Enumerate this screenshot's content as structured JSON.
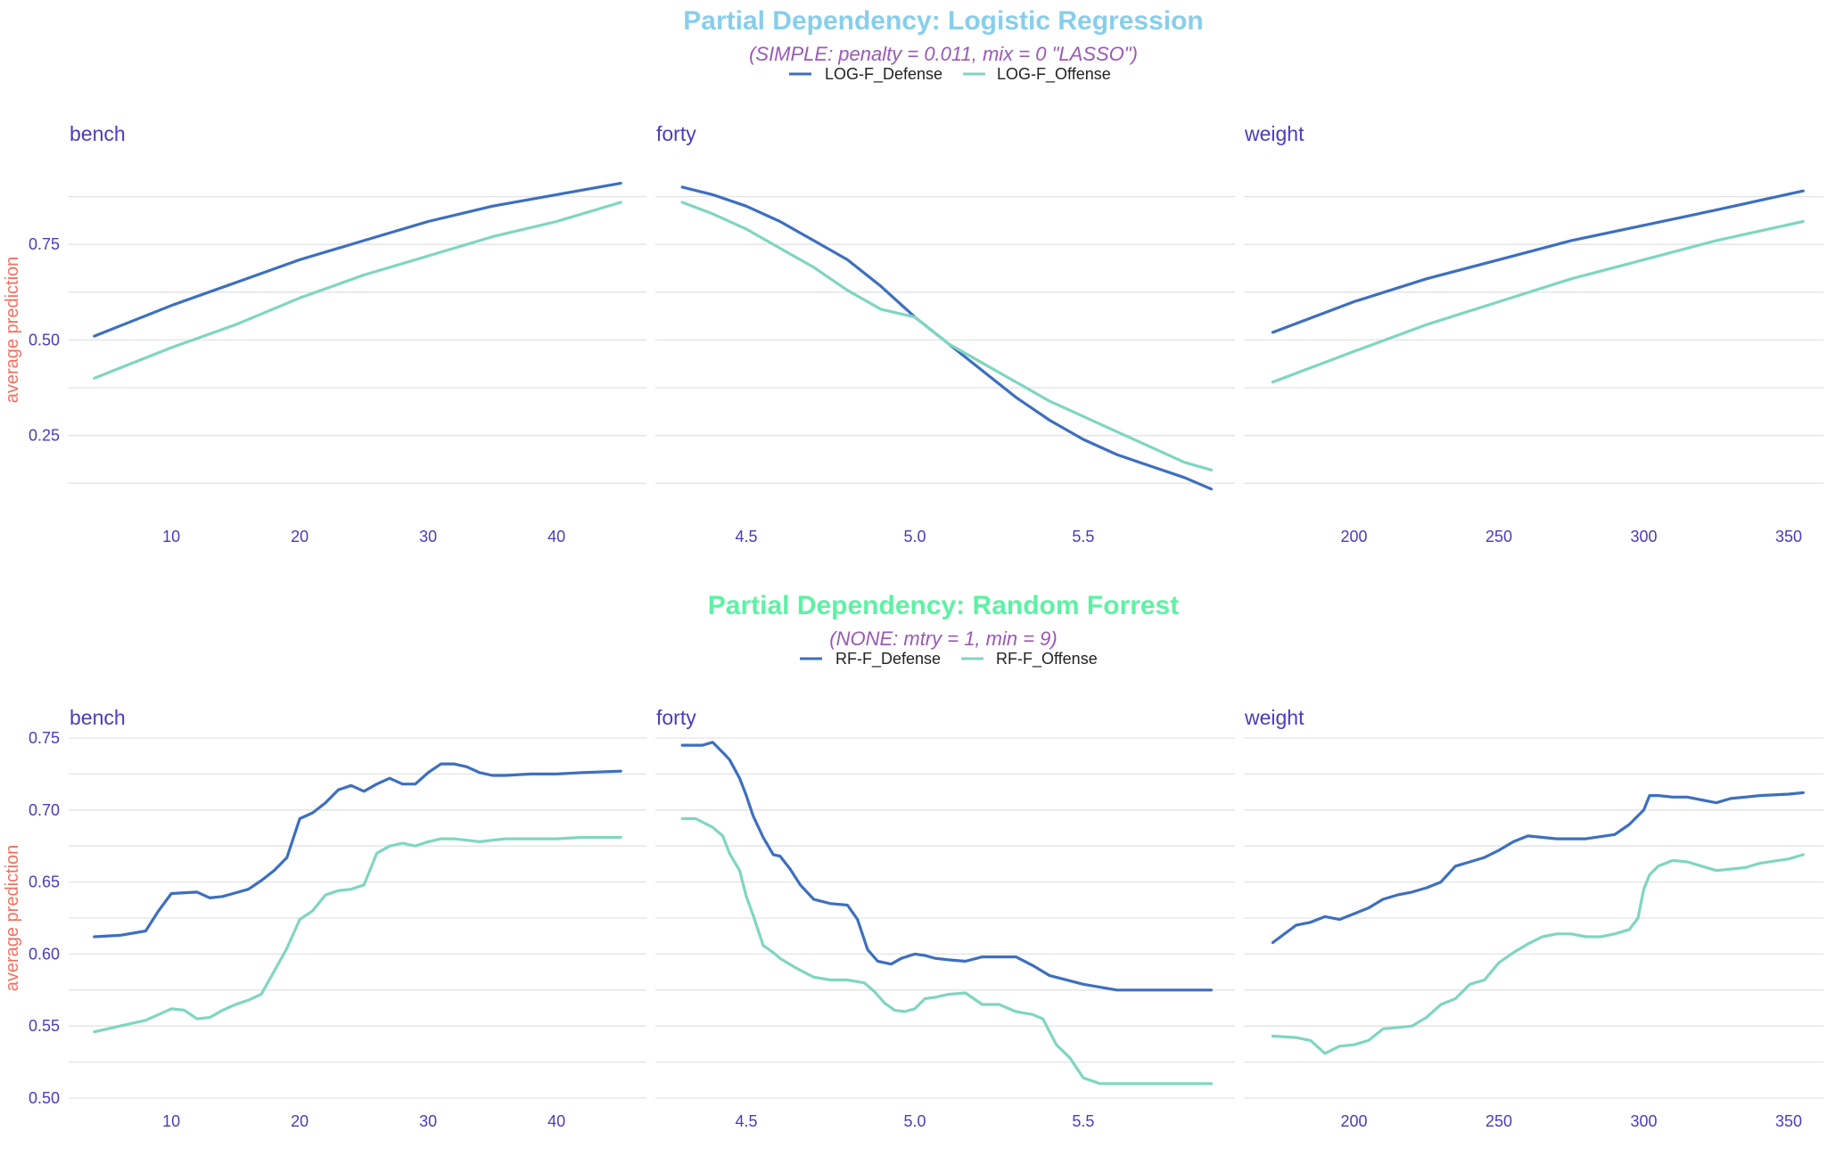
{
  "colors": {
    "defense": "#3d6fbf",
    "offense": "#7fd6bf",
    "strip_text": "#4b3bbf",
    "tick_text": "#4b3bbf",
    "ylabel": "#f07060",
    "subtitle": "#9b59b6",
    "title_top": "#87ceeb",
    "title_bottom": "#5cf2a4"
  },
  "chart_data": [
    {
      "type": "line",
      "title": "Partial Dependency: Logistic Regression",
      "subtitle": "(SIMPLE: penalty = 0.011, mix = 0 \"LASSO\")",
      "ylabel": "average prediction",
      "legend": [
        "LOG-F_Defense",
        "LOG-F_Offense"
      ],
      "legend_position": "top",
      "grid": true,
      "ylim": [
        0.1,
        0.93
      ],
      "yticks": [
        0.25,
        0.5,
        0.75
      ],
      "ytick_labels": [
        "0.25",
        "0.50",
        "0.75"
      ],
      "panels": [
        {
          "name": "bench",
          "xlim": [
            2,
            47
          ],
          "xticks": [
            10,
            20,
            30,
            40
          ],
          "xtick_labels": [
            "10",
            "20",
            "30",
            "40"
          ],
          "series": [
            {
              "name": "LOG-F_Defense",
              "x": [
                4,
                10,
                15,
                20,
                25,
                30,
                35,
                40,
                45
              ],
              "y": [
                0.51,
                0.59,
                0.65,
                0.71,
                0.76,
                0.81,
                0.85,
                0.88,
                0.91
              ]
            },
            {
              "name": "LOG-F_Offense",
              "x": [
                4,
                10,
                15,
                20,
                25,
                30,
                35,
                40,
                45
              ],
              "y": [
                0.4,
                0.48,
                0.54,
                0.61,
                0.67,
                0.72,
                0.77,
                0.81,
                0.86
              ]
            }
          ]
        },
        {
          "name": "forty",
          "xlim": [
            4.23,
            5.95
          ],
          "xticks": [
            4.5,
            5.0,
            5.5
          ],
          "xtick_labels": [
            "4.5",
            "5.0",
            "5.5"
          ],
          "series": [
            {
              "name": "LOG-F_Defense",
              "x": [
                4.31,
                4.4,
                4.5,
                4.6,
                4.7,
                4.8,
                4.9,
                5.0,
                5.1,
                5.2,
                5.3,
                5.4,
                5.5,
                5.6,
                5.7,
                5.8,
                5.88
              ],
              "y": [
                0.9,
                0.88,
                0.85,
                0.81,
                0.76,
                0.71,
                0.64,
                0.56,
                0.49,
                0.42,
                0.35,
                0.29,
                0.24,
                0.2,
                0.17,
                0.14,
                0.11
              ]
            },
            {
              "name": "LOG-F_Offense",
              "x": [
                4.31,
                4.4,
                4.5,
                4.6,
                4.7,
                4.8,
                4.9,
                5.0,
                5.1,
                5.2,
                5.3,
                5.4,
                5.5,
                5.6,
                5.7,
                5.8,
                5.88
              ],
              "y": [
                0.86,
                0.83,
                0.79,
                0.74,
                0.69,
                0.63,
                0.58,
                0.56,
                0.49,
                0.44,
                0.39,
                0.34,
                0.3,
                0.26,
                0.22,
                0.18,
                0.16
              ]
            }
          ]
        },
        {
          "name": "weight",
          "xlim": [
            162,
            362
          ],
          "xticks": [
            200,
            250,
            300,
            350
          ],
          "xtick_labels": [
            "200",
            "250",
            "300",
            "350"
          ],
          "series": [
            {
              "name": "LOG-F_Defense",
              "x": [
                172,
                200,
                225,
                250,
                275,
                300,
                325,
                355
              ],
              "y": [
                0.52,
                0.6,
                0.66,
                0.71,
                0.76,
                0.8,
                0.84,
                0.89
              ]
            },
            {
              "name": "LOG-F_Offense",
              "x": [
                172,
                200,
                225,
                250,
                275,
                300,
                325,
                355
              ],
              "y": [
                0.39,
                0.47,
                0.54,
                0.6,
                0.66,
                0.71,
                0.76,
                0.81
              ]
            }
          ]
        }
      ]
    },
    {
      "type": "line",
      "title": "Partial Dependency: Random Forrest",
      "subtitle": "(NONE: mtry = 1, min = 9)",
      "ylabel": "average prediction",
      "legend": [
        "RF-F_Defense",
        "RF-F_Offense"
      ],
      "legend_position": "top",
      "grid": true,
      "ylim": [
        0.5,
        0.75
      ],
      "yticks": [
        0.5,
        0.55,
        0.6,
        0.65,
        0.7,
        0.75
      ],
      "ytick_labels": [
        "0.50",
        "0.55",
        "0.60",
        "0.65",
        "0.70",
        "0.75"
      ],
      "panels": [
        {
          "name": "bench",
          "xlim": [
            2,
            47
          ],
          "xticks": [
            10,
            20,
            30,
            40
          ],
          "xtick_labels": [
            "10",
            "20",
            "30",
            "40"
          ],
          "series": [
            {
              "name": "RF-F_Defense",
              "x": [
                4,
                6,
                8,
                9,
                10,
                12,
                13,
                14,
                16,
                17,
                18,
                19,
                20,
                21,
                22,
                23,
                24,
                25,
                26,
                27,
                28,
                29,
                30,
                31,
                32,
                33,
                34,
                35,
                36,
                38,
                40,
                42,
                45
              ],
              "y": [
                0.612,
                0.613,
                0.616,
                0.63,
                0.642,
                0.643,
                0.639,
                0.64,
                0.645,
                0.651,
                0.658,
                0.667,
                0.694,
                0.698,
                0.705,
                0.714,
                0.717,
                0.713,
                0.718,
                0.722,
                0.718,
                0.718,
                0.726,
                0.732,
                0.732,
                0.73,
                0.726,
                0.724,
                0.724,
                0.725,
                0.725,
                0.726,
                0.727
              ]
            },
            {
              "name": "RF-F_Offense",
              "x": [
                4,
                6,
                8,
                9,
                10,
                11,
                12,
                13,
                14,
                15,
                16,
                17,
                18,
                19,
                20,
                21,
                22,
                23,
                24,
                25,
                26,
                27,
                28,
                29,
                30,
                31,
                32,
                33,
                34,
                35,
                36,
                38,
                40,
                42,
                45
              ],
              "y": [
                0.546,
                0.55,
                0.554,
                0.558,
                0.562,
                0.561,
                0.555,
                0.556,
                0.561,
                0.565,
                0.568,
                0.572,
                0.588,
                0.604,
                0.624,
                0.63,
                0.641,
                0.644,
                0.645,
                0.648,
                0.67,
                0.675,
                0.677,
                0.675,
                0.678,
                0.68,
                0.68,
                0.679,
                0.678,
                0.679,
                0.68,
                0.68,
                0.68,
                0.681,
                0.681
              ]
            }
          ]
        },
        {
          "name": "forty",
          "xlim": [
            4.23,
            5.95
          ],
          "xticks": [
            4.5,
            5.0,
            5.5
          ],
          "xtick_labels": [
            "4.5",
            "5.0",
            "5.5"
          ],
          "series": [
            {
              "name": "RF-F_Defense",
              "x": [
                4.31,
                4.37,
                4.4,
                4.43,
                4.45,
                4.48,
                4.5,
                4.52,
                4.55,
                4.58,
                4.6,
                4.63,
                4.66,
                4.7,
                4.75,
                4.8,
                4.83,
                4.86,
                4.89,
                4.93,
                4.96,
                5.0,
                5.03,
                5.06,
                5.1,
                5.15,
                5.2,
                5.3,
                5.35,
                5.4,
                5.5,
                5.6,
                5.7,
                5.8,
                5.88
              ],
              "y": [
                0.745,
                0.745,
                0.747,
                0.74,
                0.735,
                0.722,
                0.71,
                0.696,
                0.681,
                0.669,
                0.668,
                0.659,
                0.648,
                0.638,
                0.635,
                0.634,
                0.624,
                0.603,
                0.595,
                0.593,
                0.597,
                0.6,
                0.599,
                0.597,
                0.596,
                0.595,
                0.598,
                0.598,
                0.592,
                0.585,
                0.579,
                0.575,
                0.575,
                0.575,
                0.575
              ]
            },
            {
              "name": "RF-F_Offense",
              "x": [
                4.31,
                4.35,
                4.4,
                4.43,
                4.45,
                4.48,
                4.5,
                4.52,
                4.55,
                4.58,
                4.6,
                4.65,
                4.7,
                4.75,
                4.8,
                4.85,
                4.88,
                4.91,
                4.94,
                4.97,
                5.0,
                5.03,
                5.06,
                5.1,
                5.15,
                5.2,
                5.25,
                5.3,
                5.35,
                5.38,
                5.42,
                5.46,
                5.5,
                5.55,
                5.6,
                5.7,
                5.8,
                5.88
              ],
              "y": [
                0.694,
                0.694,
                0.688,
                0.682,
                0.67,
                0.658,
                0.64,
                0.627,
                0.606,
                0.601,
                0.597,
                0.59,
                0.584,
                0.582,
                0.582,
                0.58,
                0.574,
                0.566,
                0.561,
                0.56,
                0.562,
                0.569,
                0.57,
                0.572,
                0.573,
                0.565,
                0.565,
                0.56,
                0.558,
                0.555,
                0.537,
                0.528,
                0.514,
                0.51,
                0.51,
                0.51,
                0.51,
                0.51
              ]
            }
          ]
        },
        {
          "name": "weight",
          "xlim": [
            162,
            362
          ],
          "xticks": [
            200,
            250,
            300,
            350
          ],
          "xtick_labels": [
            "200",
            "250",
            "300",
            "350"
          ],
          "series": [
            {
              "name": "RF-F_Defense",
              "x": [
                172,
                180,
                185,
                190,
                195,
                200,
                205,
                210,
                215,
                220,
                225,
                230,
                235,
                240,
                245,
                250,
                255,
                260,
                265,
                270,
                280,
                290,
                295,
                300,
                302,
                305,
                310,
                315,
                320,
                325,
                330,
                335,
                340,
                350,
                355
              ],
              "y": [
                0.608,
                0.62,
                0.622,
                0.626,
                0.624,
                0.628,
                0.632,
                0.638,
                0.641,
                0.643,
                0.646,
                0.65,
                0.661,
                0.664,
                0.667,
                0.672,
                0.678,
                0.682,
                0.681,
                0.68,
                0.68,
                0.683,
                0.69,
                0.7,
                0.71,
                0.71,
                0.709,
                0.709,
                0.707,
                0.705,
                0.708,
                0.709,
                0.71,
                0.711,
                0.712
              ]
            },
            {
              "name": "RF-F_Offense",
              "x": [
                172,
                180,
                185,
                190,
                195,
                200,
                205,
                210,
                215,
                220,
                225,
                230,
                235,
                240,
                245,
                250,
                255,
                260,
                265,
                270,
                275,
                280,
                285,
                290,
                295,
                298,
                300,
                302,
                305,
                310,
                315,
                320,
                325,
                330,
                335,
                340,
                350,
                355
              ],
              "y": [
                0.543,
                0.542,
                0.54,
                0.531,
                0.536,
                0.537,
                0.54,
                0.548,
                0.549,
                0.55,
                0.556,
                0.565,
                0.569,
                0.579,
                0.582,
                0.594,
                0.601,
                0.607,
                0.612,
                0.614,
                0.614,
                0.612,
                0.612,
                0.614,
                0.617,
                0.625,
                0.645,
                0.655,
                0.661,
                0.665,
                0.664,
                0.661,
                0.658,
                0.659,
                0.66,
                0.663,
                0.666,
                0.669
              ]
            }
          ]
        }
      ]
    }
  ]
}
